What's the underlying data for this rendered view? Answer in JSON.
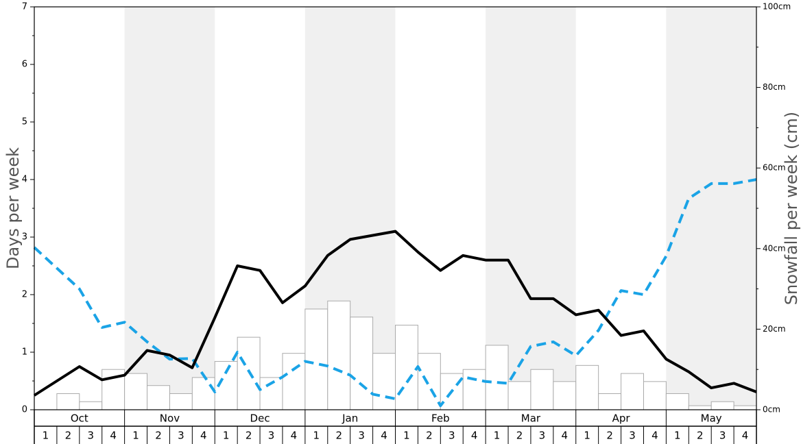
{
  "chart_data": {
    "type": "bar",
    "xlabel": "",
    "ylabel_left": "Days per week",
    "ylabel_right": "Snowfall per week (cm)",
    "ylim_left": [
      0,
      7
    ],
    "ylim_right": [
      0,
      100
    ],
    "left_ticks": [
      "0",
      "1",
      "2",
      "3",
      "4",
      "5",
      "6",
      "7"
    ],
    "right_ticks": [
      "0cm",
      "20cm",
      "40cm",
      "60cm",
      "80cm",
      "100cm"
    ],
    "months": [
      "Oct",
      "Nov",
      "Dec",
      "Jan",
      "Feb",
      "Mar",
      "Apr",
      "May"
    ],
    "weeks": [
      "1",
      "2",
      "3",
      "4"
    ],
    "grid": "alternating month bands",
    "colors": {
      "bars": "#ffffff",
      "bar_stroke": "#aaaaaa",
      "solid_line": "#000000",
      "dashed_line": "#1aa3e6",
      "band": "#f0f0f0"
    },
    "series": [
      {
        "role": "snowfall-bars",
        "axis": "right",
        "values": [
          0,
          4,
          2,
          10,
          9,
          6,
          4,
          8,
          12,
          18,
          8,
          14,
          25,
          27,
          23,
          14,
          21,
          14,
          9,
          10,
          16,
          7,
          10,
          7,
          11,
          4,
          9,
          7,
          4,
          1,
          2,
          1
        ]
      },
      {
        "role": "solid-line",
        "axis": "left",
        "values": [
          0.25,
          0.5,
          0.75,
          0.52,
          0.6,
          1.03,
          0.95,
          0.73,
          1.6,
          2.5,
          2.42,
          1.86,
          2.15,
          2.68,
          2.96,
          3.03,
          3.1,
          2.74,
          2.42,
          2.68,
          2.6,
          2.6,
          1.93,
          1.93,
          1.65,
          1.73,
          1.29,
          1.37,
          0.88,
          0.66,
          0.38,
          0.46,
          0.31
        ]
      },
      {
        "role": "dashed-line",
        "axis": "left",
        "values": [
          2.82,
          2.46,
          2.1,
          1.43,
          1.52,
          1.18,
          0.88,
          0.89,
          0.31,
          1.0,
          0.35,
          0.57,
          0.84,
          0.76,
          0.6,
          0.27,
          0.19,
          0.75,
          0.07,
          0.57,
          0.49,
          0.46,
          1.1,
          1.18,
          0.94,
          1.38,
          2.07,
          2.0,
          2.67,
          3.67,
          3.93,
          3.93,
          4.0
        ]
      }
    ]
  }
}
